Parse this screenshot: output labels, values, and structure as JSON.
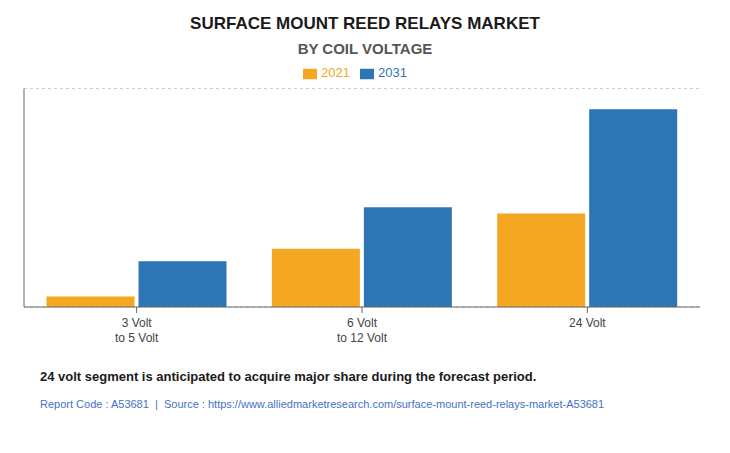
{
  "chart_data": {
    "type": "bar",
    "title": "SURFACE MOUNT REED RELAYS MARKET",
    "subtitle": "BY COIL VOLTAGE",
    "categories": [
      "3 Volt\nto 5 Volt",
      "6 Volt\nto 12 Volt",
      "24 Volt"
    ],
    "series": [
      {
        "name": "2021",
        "color": "#F5A623",
        "values": [
          0.05,
          0.28,
          0.45
        ]
      },
      {
        "name": "2031",
        "color": "#2E75B6",
        "values": [
          0.22,
          0.48,
          0.95
        ]
      }
    ],
    "ylim": [
      0,
      1.05
    ],
    "yticks": [
      0,
      0.2,
      0.4,
      0.6,
      0.8,
      1.0
    ],
    "grid": true,
    "legend": "top",
    "tick_labels": "x",
    "annotations": [
      "24 volt segment is anticipated to acquire major share during the forecast period.",
      "Report Code : A53681  |  Source : https://www.alliedmarketresearch.com/surface-mount-reed-relays-market-A53681"
    ]
  }
}
